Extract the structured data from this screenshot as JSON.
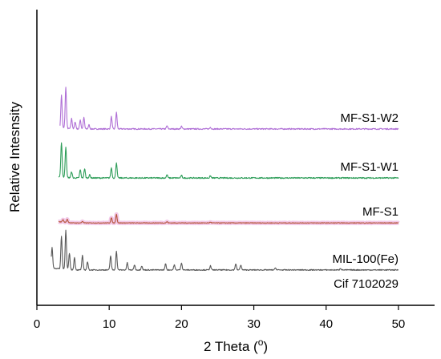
{
  "chart_data": {
    "type": "line",
    "xlabel": "2 Theta (",
    "xlabel_degree": "o",
    "xlabel_close": ")",
    "ylabel": "Relative Intesnsity",
    "xlim": [
      0,
      55
    ],
    "x_ticks": [
      "0",
      "10",
      "20",
      "30",
      "40",
      "50"
    ],
    "x_tick_values": [
      0,
      10,
      20,
      30,
      40,
      50
    ],
    "y_ticks_shown": false,
    "grid": false,
    "colors": {
      "MIL-100(Fe)": "#5a5a5a",
      "MF-S1": "#b5553a",
      "MF-S1-W1": "#2f9e5a",
      "MF-S1-W2": "#b070d6",
      "MF-S1_glow": "#f2c8e8"
    },
    "series": [
      {
        "name": "MF-S1-W2",
        "label_lines": [
          "MF-S1-W2"
        ],
        "baseline": 8.2,
        "x_range": [
          3.2,
          50
        ],
        "noise": 0.06,
        "peaks": [
          [
            3.4,
            1.6
          ],
          [
            4.0,
            2.0
          ],
          [
            4.8,
            0.5
          ],
          [
            5.3,
            0.35
          ],
          [
            6.0,
            0.45
          ],
          [
            6.5,
            0.55
          ],
          [
            7.2,
            0.2
          ],
          [
            10.3,
            0.6
          ],
          [
            11.0,
            0.8
          ],
          [
            18.0,
            0.15
          ],
          [
            20.0,
            0.12
          ],
          [
            24.0,
            0.08
          ]
        ]
      },
      {
        "name": "MF-S1-W1",
        "label_lines": [
          "MF-S1-W1"
        ],
        "baseline": 5.8,
        "x_range": [
          3.0,
          50
        ],
        "noise": 0.06,
        "peaks": [
          [
            3.4,
            1.7
          ],
          [
            4.0,
            1.5
          ],
          [
            4.8,
            0.3
          ],
          [
            6.0,
            0.4
          ],
          [
            6.6,
            0.45
          ],
          [
            7.3,
            0.15
          ],
          [
            10.3,
            0.5
          ],
          [
            11.0,
            0.75
          ],
          [
            18.0,
            0.15
          ],
          [
            20.0,
            0.12
          ],
          [
            24.0,
            0.1
          ]
        ]
      },
      {
        "name": "MF-S1",
        "label_lines": [
          "MF-S1"
        ],
        "baseline": 3.6,
        "x_range": [
          3.0,
          50
        ],
        "noise": 0.03,
        "peaks": [
          [
            3.6,
            0.12
          ],
          [
            4.2,
            0.15
          ],
          [
            6.3,
            0.08
          ],
          [
            10.3,
            0.25
          ],
          [
            11.0,
            0.42
          ],
          [
            18.0,
            0.06
          ],
          [
            24.0,
            0.04
          ]
        ]
      },
      {
        "name": "MIL-100(Fe)",
        "label_lines": [
          "MIL-100(Fe)",
          "Cif 7102029"
        ],
        "baseline": 1.3,
        "x_range": [
          2.0,
          50
        ],
        "noise": 0.05,
        "peaks": [
          [
            2.1,
            1.0
          ],
          [
            3.4,
            1.6
          ],
          [
            4.0,
            1.9
          ],
          [
            4.5,
            0.8
          ],
          [
            5.2,
            0.6
          ],
          [
            6.3,
            0.7
          ],
          [
            7.0,
            0.4
          ],
          [
            10.2,
            0.7
          ],
          [
            11.0,
            0.9
          ],
          [
            12.5,
            0.35
          ],
          [
            13.5,
            0.25
          ],
          [
            14.5,
            0.2
          ],
          [
            17.8,
            0.3
          ],
          [
            19.0,
            0.25
          ],
          [
            20.0,
            0.35
          ],
          [
            24.0,
            0.2
          ],
          [
            27.5,
            0.3
          ],
          [
            28.2,
            0.25
          ],
          [
            33.0,
            0.1
          ],
          [
            42.0,
            0.08
          ]
        ]
      }
    ]
  }
}
